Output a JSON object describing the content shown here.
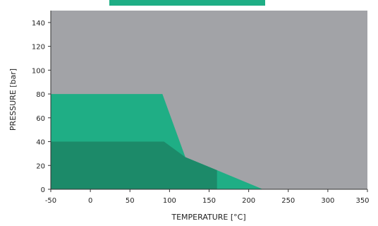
{
  "chart_data": {
    "type": "area",
    "xlabel": "TEMPERATURE [°C]",
    "ylabel": "PRESSURE [bar]",
    "xlim": [
      -50,
      350
    ],
    "ylim": [
      0,
      150
    ],
    "x_ticks": [
      "-50",
      "0",
      "50",
      "100",
      "150",
      "200",
      "250",
      "300",
      "350"
    ],
    "y_ticks": [
      "0",
      "20",
      "40",
      "60",
      "80",
      "100",
      "120",
      "140"
    ],
    "grid": false,
    "regions": [
      {
        "color": "#1fae85",
        "points": [
          [
            -50,
            0
          ],
          [
            -50,
            80
          ],
          [
            91,
            80
          ],
          [
            120,
            27
          ],
          [
            160,
            16
          ],
          [
            218,
            0
          ]
        ]
      },
      {
        "color": "#1c8a69",
        "points": [
          [
            -50,
            0
          ],
          [
            -50,
            40
          ],
          [
            93,
            40
          ],
          [
            120,
            27
          ],
          [
            160,
            16
          ],
          [
            160,
            0
          ]
        ]
      }
    ],
    "background_color": "#a2a3a7",
    "legend_swatch_color": "#1fae85"
  }
}
